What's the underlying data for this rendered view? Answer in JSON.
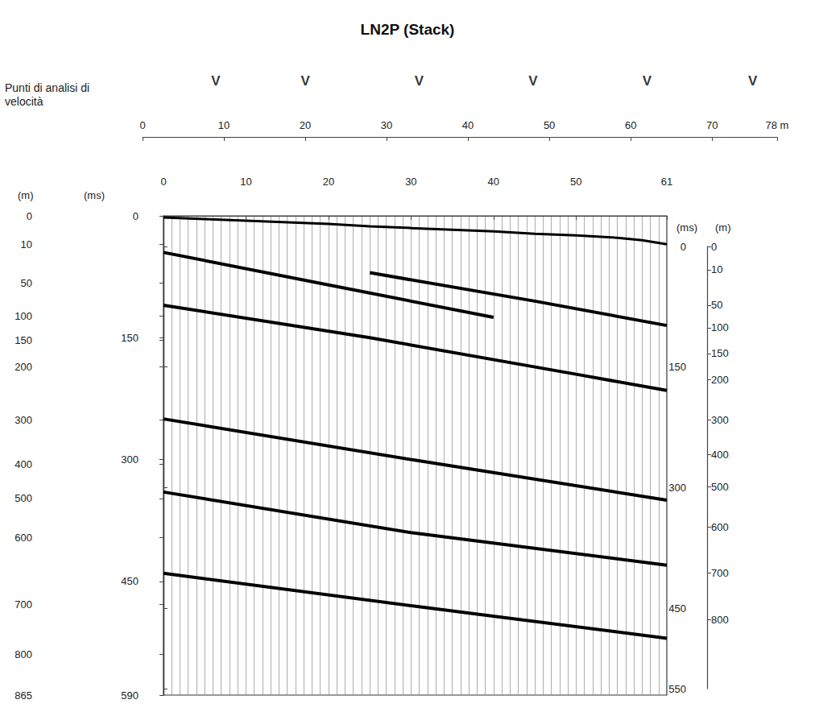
{
  "chart_data": {
    "type": "seismic_section",
    "title": "LN2P (Stack)",
    "color": "#000000",
    "grid": true,
    "xlim": [
      0,
      61
    ],
    "xticks": [
      0,
      10,
      20,
      30,
      40,
      50,
      61
    ],
    "ylim": [
      0,
      590
    ],
    "yticks": [
      0,
      150,
      300,
      450,
      590
    ],
    "y_label": "(ms)",
    "depth_label": "(m)",
    "depth_ticks": [
      {
        "value": 0,
        "label": "0"
      },
      {
        "value": 35,
        "label": "10"
      },
      {
        "value": 83,
        "label": "50"
      },
      {
        "value": 123,
        "label": "100"
      },
      {
        "value": 153,
        "label": "150"
      },
      {
        "value": 186,
        "label": "200"
      },
      {
        "value": 251,
        "label": "300"
      },
      {
        "value": 306,
        "label": "400"
      },
      {
        "value": 348,
        "label": "500"
      },
      {
        "value": 396,
        "label": "600"
      },
      {
        "value": 478,
        "label": "700"
      },
      {
        "value": 540,
        "label": "800"
      },
      {
        "value": 590,
        "label": "865"
      }
    ],
    "y2lim": [
      0,
      550
    ],
    "y2ticks": [
      0,
      150,
      300,
      450,
      550
    ],
    "y2_label": "(ms)",
    "depth2_label": "(m)",
    "depth2_ticks": [
      {
        "value": 0,
        "label": "0"
      },
      {
        "value": 29,
        "label": "10"
      },
      {
        "value": 73,
        "label": "50"
      },
      {
        "value": 101,
        "label": "100"
      },
      {
        "value": 133,
        "label": "150"
      },
      {
        "value": 166,
        "label": "200"
      },
      {
        "value": 216,
        "label": "300"
      },
      {
        "value": 259,
        "label": "400"
      },
      {
        "value": 299,
        "label": "500"
      },
      {
        "value": 349,
        "label": "600"
      },
      {
        "value": 406,
        "label": "700"
      },
      {
        "value": 464,
        "label": "800"
      }
    ],
    "distance_axis": {
      "label": "Punti di analisi di velocità",
      "marker": "V",
      "xlim": [
        0,
        78
      ],
      "xticks": [
        0,
        10,
        20,
        30,
        40,
        50,
        60,
        70,
        {
          "value": 78,
          "label": "78 m"
        }
      ],
      "x": [
        9,
        20,
        34,
        48,
        62,
        75
      ]
    },
    "first_break": {
      "x": [
        0,
        5,
        10,
        15,
        20,
        25,
        30,
        35,
        40,
        45,
        50,
        55,
        58,
        61
      ],
      "values": [
        2,
        4,
        6,
        8,
        10,
        13,
        15,
        17,
        19,
        22,
        24,
        27,
        30,
        35
      ]
    },
    "reflectors": [
      {
        "x": [
          0,
          20,
          40
        ],
        "values": [
          45,
          85,
          125
        ]
      },
      {
        "x": [
          0,
          25,
          50,
          61
        ],
        "values": [
          110,
          150,
          195,
          215
        ]
      },
      {
        "x": [
          25,
          45,
          61
        ],
        "values": [
          70,
          105,
          135
        ]
      },
      {
        "x": [
          0,
          30,
          61
        ],
        "values": [
          250,
          300,
          350
        ]
      },
      {
        "x": [
          0,
          30,
          61
        ],
        "values": [
          340,
          390,
          430
        ]
      },
      {
        "x": [
          0,
          30,
          61
        ],
        "values": [
          440,
          480,
          520
        ]
      }
    ]
  }
}
